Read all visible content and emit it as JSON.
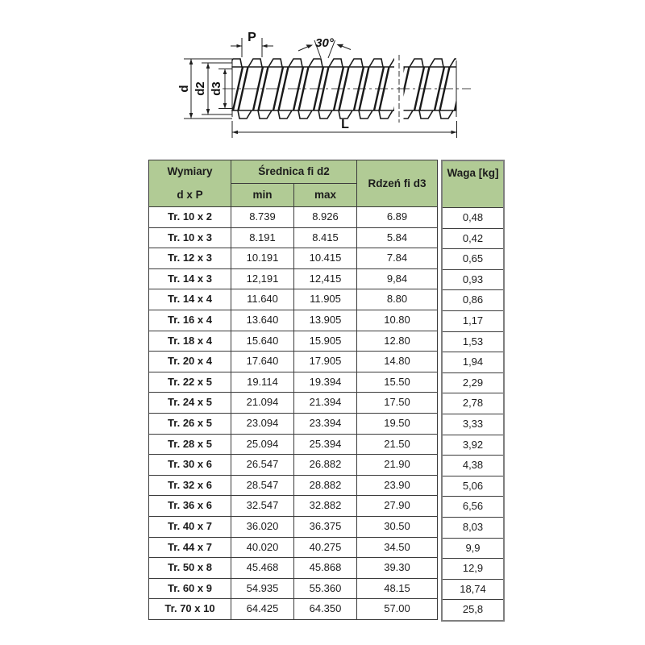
{
  "drawing": {
    "labels": {
      "pitch": "P",
      "angle": "30°",
      "diameter_d": "d",
      "diameter_d2": "d2",
      "diameter_d3": "d3",
      "length": "L"
    }
  },
  "table": {
    "headers": {
      "dimensions_line1": "Wymiary",
      "dimensions_line2": "d x P",
      "diameter_group": "Średnica fi d2",
      "diameter_min": "min",
      "diameter_max": "max",
      "core": "Rdzeń fi d3",
      "weight": "Waga [kg]"
    },
    "rows": [
      {
        "dim": "Tr. 10 x 2",
        "min": "8.739",
        "max": "8.926",
        "core": "6.89",
        "weight": "0,48"
      },
      {
        "dim": "Tr. 10 x 3",
        "min": "8.191",
        "max": "8.415",
        "core": "5.84",
        "weight": "0,42"
      },
      {
        "dim": "Tr. 12 x 3",
        "min": "10.191",
        "max": "10.415",
        "core": "7.84",
        "weight": "0,65"
      },
      {
        "dim": "Tr. 14 x 3",
        "min": "12,191",
        "max": "12,415",
        "core": "9,84",
        "weight": "0,93"
      },
      {
        "dim": "Tr. 14 x 4",
        "min": "11.640",
        "max": "11.905",
        "core": "8.80",
        "weight": "0,86"
      },
      {
        "dim": "Tr. 16 x 4",
        "min": "13.640",
        "max": "13.905",
        "core": "10.80",
        "weight": "1,17"
      },
      {
        "dim": "Tr. 18 x 4",
        "min": "15.640",
        "max": "15.905",
        "core": "12.80",
        "weight": "1,53"
      },
      {
        "dim": "Tr. 20 x 4",
        "min": "17.640",
        "max": "17.905",
        "core": "14.80",
        "weight": "1,94"
      },
      {
        "dim": "Tr. 22 x 5",
        "min": "19.114",
        "max": "19.394",
        "core": "15.50",
        "weight": "2,29"
      },
      {
        "dim": "Tr. 24 x 5",
        "min": "21.094",
        "max": "21.394",
        "core": "17.50",
        "weight": "2,78"
      },
      {
        "dim": "Tr. 26 x 5",
        "min": "23.094",
        "max": "23.394",
        "core": "19.50",
        "weight": "3,33"
      },
      {
        "dim": "Tr. 28 x 5",
        "min": "25.094",
        "max": "25.394",
        "core": "21.50",
        "weight": "3,92"
      },
      {
        "dim": "Tr. 30 x 6",
        "min": "26.547",
        "max": "26.882",
        "core": "21.90",
        "weight": "4,38"
      },
      {
        "dim": "Tr. 32 x 6",
        "min": "28.547",
        "max": "28.882",
        "core": "23.90",
        "weight": "5,06"
      },
      {
        "dim": "Tr. 36 x 6",
        "min": "32.547",
        "max": "32.882",
        "core": "27.90",
        "weight": "6,56"
      },
      {
        "dim": "Tr. 40 x 7",
        "min": "36.020",
        "max": "36.375",
        "core": "30.50",
        "weight": "8,03"
      },
      {
        "dim": "Tr. 44 x 7",
        "min": "40.020",
        "max": "40.275",
        "core": "34.50",
        "weight": "9,9"
      },
      {
        "dim": "Tr. 50 x 8",
        "min": "45.468",
        "max": "45.868",
        "core": "39.30",
        "weight": "12,9"
      },
      {
        "dim": "Tr. 60 x 9",
        "min": "54.935",
        "max": "55.360",
        "core": "48.15",
        "weight": "18,74"
      },
      {
        "dim": "Tr. 70 x 10",
        "min": "64.425",
        "max": "64.350",
        "core": "57.00",
        "weight": "25,8"
      }
    ]
  },
  "colors": {
    "header_bg": "#b1cb95",
    "table_border": "#3b3b3b",
    "weight_box_border": "#7f7f7f",
    "drawing_line": "#1a1a1a"
  }
}
